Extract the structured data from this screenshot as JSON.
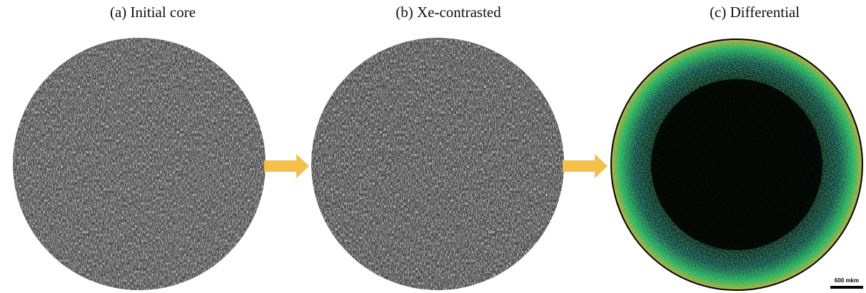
{
  "panels": [
    {
      "title": "(a) Initial core"
    },
    {
      "title": "(b) Xe-contrasted"
    },
    {
      "title": "(c) Differential"
    }
  ],
  "scale_bar": {
    "label": "600 mkm"
  }
}
